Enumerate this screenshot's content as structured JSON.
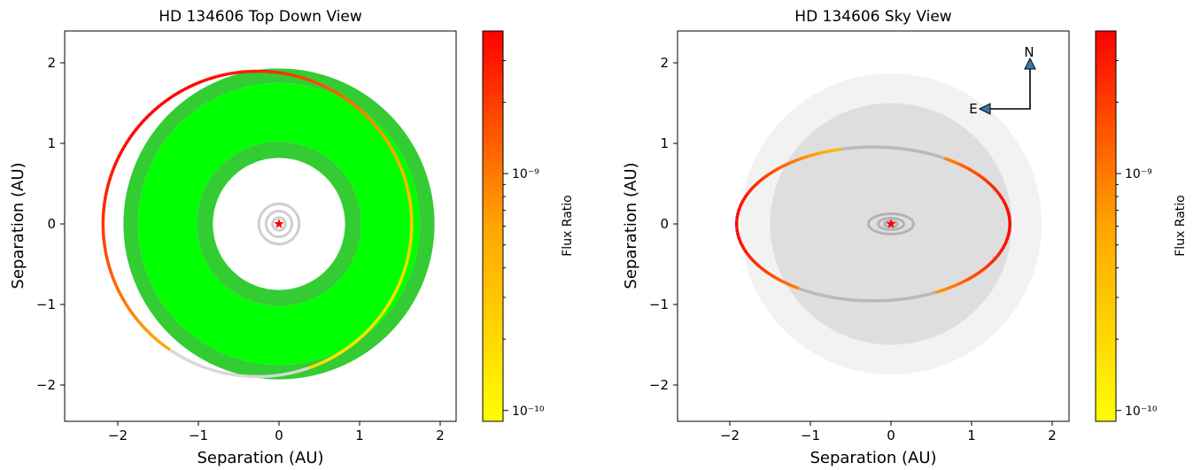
{
  "chart_data": [
    {
      "type": "scatter",
      "title": "HD 134606 Top Down View",
      "xlabel": "Separation (AU)",
      "ylabel": "Separation (AU)",
      "xlim": [
        -2.65,
        2.2
      ],
      "ylim": [
        -2.45,
        2.4
      ],
      "xticks": [
        "−2",
        "−1",
        "0",
        "1",
        "2"
      ],
      "yticks": [
        "2",
        "1",
        "0",
        "−1",
        "−2"
      ],
      "star": {
        "x": 0,
        "y": 0,
        "color": "#ff0000"
      },
      "inner_orbits_radii": [
        0.08,
        0.16,
        0.25
      ],
      "habitable_zone_rings": [
        {
          "inner": 0.82,
          "outer": 1.02,
          "color": "#33cc33"
        },
        {
          "inner": 1.02,
          "outer": 1.75,
          "color": "#00ff00"
        },
        {
          "inner": 1.75,
          "outer": 1.93,
          "color": "#33cc33"
        }
      ],
      "orbit": {
        "semi_major": 1.915,
        "eccentricity": 0.14,
        "flux_ratio_range": [
          1e-10,
          3e-09
        ]
      },
      "colorbar": {
        "label": "Flux Ratio",
        "scale": "log",
        "range": [
          9e-11,
          4e-09
        ],
        "ticks": [
          {
            "value": 1e-10,
            "label": "10⁻¹⁰"
          },
          {
            "value": 1e-09,
            "label": "10⁻⁹"
          }
        ],
        "colors": [
          "#ffff00",
          "#ffa500",
          "#ff0000"
        ]
      }
    },
    {
      "type": "scatter",
      "title": "HD 134606 Sky View",
      "xlabel": "Separation (AU)",
      "ylabel": "Separation (AU)",
      "xlim": [
        -2.65,
        2.2
      ],
      "ylim": [
        -2.45,
        2.4
      ],
      "xticks": [
        "−2",
        "−1",
        "0",
        "1",
        "2"
      ],
      "yticks": [
        "2",
        "1",
        "0",
        "−1",
        "−2"
      ],
      "star": {
        "x": 0,
        "y": 0,
        "color": "#ff0000"
      },
      "sky_disks": [
        {
          "radius": 1.87,
          "color": "#f2f2f2"
        },
        {
          "radius": 1.5,
          "color": "#dedede"
        }
      ],
      "orbit": {
        "semi_major": 1.915,
        "eccentricity": 0.14,
        "projected_y_scale": 0.5
      },
      "compass": {
        "north_label": "N",
        "east_label": "E",
        "arrow_color": "#3a78b5"
      },
      "colorbar": {
        "label": "Flux Ratio",
        "scale": "log",
        "range": [
          9e-11,
          4e-09
        ],
        "ticks": [
          {
            "value": 1e-10,
            "label": "10⁻¹⁰"
          },
          {
            "value": 1e-09,
            "label": "10⁻⁹"
          }
        ],
        "colors": [
          "#ffff00",
          "#ffa500",
          "#ff0000"
        ]
      }
    }
  ]
}
